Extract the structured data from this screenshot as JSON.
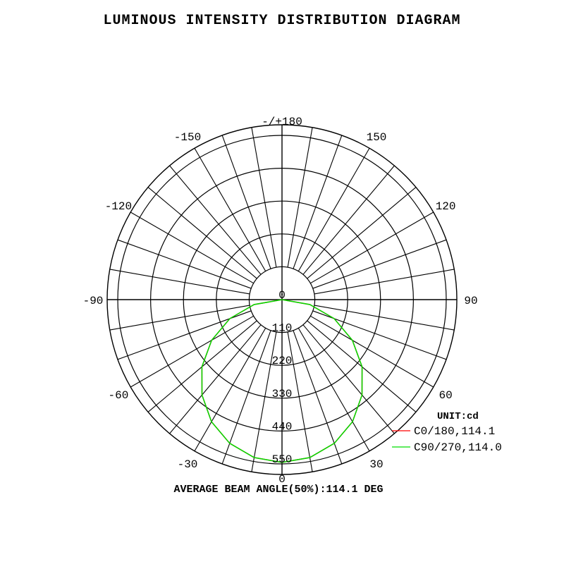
{
  "chart_data": {
    "type": "polar",
    "title": "LUMINOUS INTENSITY DISTRIBUTION DIAGRAM",
    "unit_label": "UNIT:cd",
    "radial_ticks": [
      0,
      110,
      220,
      330,
      440,
      550
    ],
    "angle_ticks": [
      {
        "angle": 180,
        "label": "-/+180"
      },
      {
        "angle": 150,
        "label": "150"
      },
      {
        "angle": -150,
        "label": "-150"
      },
      {
        "angle": 120,
        "label": "120"
      },
      {
        "angle": -120,
        "label": "-120"
      },
      {
        "angle": 90,
        "label": "90"
      },
      {
        "angle": -90,
        "label": "-90"
      },
      {
        "angle": 60,
        "label": "60"
      },
      {
        "angle": -60,
        "label": "-60"
      },
      {
        "angle": 30,
        "label": "30"
      },
      {
        "angle": -30,
        "label": "-30"
      },
      {
        "angle": 0,
        "label": "0"
      }
    ],
    "grid": true,
    "legend_position": "bottom-right",
    "gamma": [
      -90,
      -80,
      -70,
      -60,
      -50,
      -40,
      -30,
      -20,
      -10,
      0,
      10,
      20,
      30,
      40,
      50,
      60,
      70,
      80,
      90
    ],
    "series": [
      {
        "name": "C0/180,114.1",
        "color": "#ff0000",
        "values": [
          0,
          95,
          186,
          272,
          350,
          417,
          472,
          512,
          537,
          545,
          537,
          512,
          472,
          417,
          350,
          272,
          186,
          95,
          0
        ]
      },
      {
        "name": "C90/270,114.0",
        "color": "#00dd00",
        "values": [
          0,
          95,
          186,
          272,
          350,
          417,
          472,
          512,
          537,
          545,
          537,
          512,
          472,
          417,
          350,
          272,
          186,
          95,
          0
        ]
      }
    ],
    "footer": "AVERAGE BEAM ANGLE(50%):114.1 DEG"
  }
}
